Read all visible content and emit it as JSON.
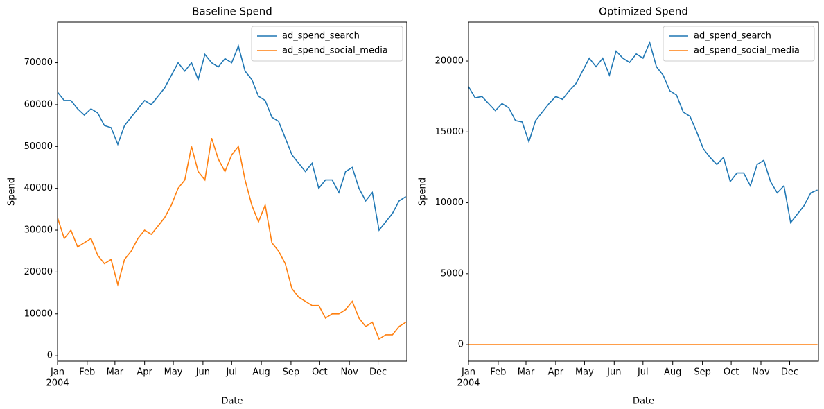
{
  "chart_data": [
    {
      "type": "line",
      "title": "Baseline Spend",
      "xlabel": "Date",
      "ylabel": "Spend",
      "x_offset_label": "2004",
      "legend": "upper right",
      "x": [
        0,
        7,
        14,
        21,
        28,
        35,
        42,
        49,
        56,
        63,
        70,
        77,
        84,
        91,
        98,
        105,
        112,
        119,
        126,
        133,
        140,
        147,
        154,
        161,
        168,
        175,
        182,
        189,
        196,
        203,
        210,
        217,
        224,
        231,
        238,
        245,
        252,
        259,
        266,
        273,
        280,
        287,
        294,
        301,
        308,
        315,
        322,
        329,
        336,
        343,
        350,
        357,
        364
      ],
      "xlim": [
        0,
        365
      ],
      "ylim": [
        -1300,
        79700
      ],
      "xticks": [
        {
          "value": 0,
          "label": "Jan"
        },
        {
          "value": 31,
          "label": "Feb"
        },
        {
          "value": 60,
          "label": "Mar"
        },
        {
          "value": 91,
          "label": "Apr"
        },
        {
          "value": 121,
          "label": "May"
        },
        {
          "value": 152,
          "label": "Jun"
        },
        {
          "value": 182,
          "label": "Jul"
        },
        {
          "value": 213,
          "label": "Aug"
        },
        {
          "value": 244,
          "label": "Sep"
        },
        {
          "value": 274,
          "label": "Oct"
        },
        {
          "value": 305,
          "label": "Nov"
        },
        {
          "value": 335,
          "label": "Dec"
        }
      ],
      "yticks": [
        0,
        10000,
        20000,
        30000,
        40000,
        50000,
        60000,
        70000
      ],
      "series": [
        {
          "name": "ad_spend_search",
          "color": "#1f77b4",
          "values": [
            63000,
            61000,
            61000,
            59000,
            57500,
            59000,
            58000,
            55000,
            54500,
            50500,
            55000,
            57000,
            59000,
            61000,
            60000,
            62000,
            64000,
            67000,
            70000,
            68000,
            70000,
            66000,
            72000,
            70000,
            69000,
            71000,
            70000,
            74000,
            68000,
            66000,
            62000,
            61000,
            57000,
            56000,
            52000,
            48000,
            46000,
            44000,
            46000,
            40000,
            42000,
            42000,
            39000,
            44000,
            45000,
            40000,
            37000,
            39000,
            30000,
            32000,
            34000,
            37000,
            38000
          ]
        },
        {
          "name": "ad_spend_social_media",
          "color": "#ff7f0e",
          "values": [
            33000,
            28000,
            30000,
            26000,
            27000,
            28000,
            24000,
            22000,
            23000,
            17000,
            23000,
            25000,
            28000,
            30000,
            29000,
            31000,
            33000,
            36000,
            40000,
            42000,
            50000,
            44000,
            42000,
            52000,
            47000,
            44000,
            48000,
            50000,
            42000,
            36000,
            32000,
            36000,
            27000,
            25000,
            22000,
            16000,
            14000,
            13000,
            12000,
            12000,
            9000,
            10000,
            10000,
            11000,
            13000,
            9000,
            7000,
            8000,
            4000,
            5000,
            5000,
            7000,
            8000
          ]
        }
      ]
    },
    {
      "type": "line",
      "title": "Optimized Spend",
      "xlabel": "Date",
      "ylabel": "Spend",
      "x_offset_label": "2004",
      "legend": "upper right",
      "x": [
        0,
        7,
        14,
        21,
        28,
        35,
        42,
        49,
        56,
        63,
        70,
        77,
        84,
        91,
        98,
        105,
        112,
        119,
        126,
        133,
        140,
        147,
        154,
        161,
        168,
        175,
        182,
        189,
        196,
        203,
        210,
        217,
        224,
        231,
        238,
        245,
        252,
        259,
        266,
        273,
        280,
        287,
        294,
        301,
        308,
        315,
        322,
        329,
        336,
        343,
        350,
        357,
        364
      ],
      "xlim": [
        0,
        365
      ],
      "ylim": [
        -1170,
        22740
      ],
      "xticks": [
        {
          "value": 0,
          "label": "Jan"
        },
        {
          "value": 31,
          "label": "Feb"
        },
        {
          "value": 60,
          "label": "Mar"
        },
        {
          "value": 91,
          "label": "Apr"
        },
        {
          "value": 121,
          "label": "May"
        },
        {
          "value": 152,
          "label": "Jun"
        },
        {
          "value": 182,
          "label": "Jul"
        },
        {
          "value": 213,
          "label": "Aug"
        },
        {
          "value": 244,
          "label": "Sep"
        },
        {
          "value": 274,
          "label": "Oct"
        },
        {
          "value": 305,
          "label": "Nov"
        },
        {
          "value": 335,
          "label": "Dec"
        }
      ],
      "yticks": [
        0,
        5000,
        10000,
        15000,
        20000
      ],
      "series": [
        {
          "name": "ad_spend_search",
          "color": "#1f77b4",
          "values": [
            18200,
            17400,
            17500,
            17000,
            16500,
            17000,
            16700,
            15800,
            15700,
            14300,
            15800,
            16400,
            17000,
            17500,
            17300,
            17900,
            18400,
            19300,
            20200,
            19600,
            20200,
            19000,
            20700,
            20200,
            19900,
            20500,
            20200,
            21300,
            19600,
            19000,
            17900,
            17600,
            16400,
            16100,
            15000,
            13800,
            13200,
            12700,
            13200,
            11500,
            12100,
            12100,
            11200,
            12700,
            13000,
            11500,
            10700,
            11200,
            8600,
            9200,
            9800,
            10700,
            10900
          ]
        },
        {
          "name": "ad_spend_social_media",
          "color": "#ff7f0e",
          "values": [
            0,
            0,
            0,
            0,
            0,
            0,
            0,
            0,
            0,
            0,
            0,
            0,
            0,
            0,
            0,
            0,
            0,
            0,
            0,
            0,
            0,
            0,
            0,
            0,
            0,
            0,
            0,
            0,
            0,
            0,
            0,
            0,
            0,
            0,
            0,
            0,
            0,
            0,
            0,
            0,
            0,
            0,
            0,
            0,
            0,
            0,
            0,
            0,
            0,
            0,
            0,
            0,
            0
          ]
        }
      ]
    }
  ]
}
